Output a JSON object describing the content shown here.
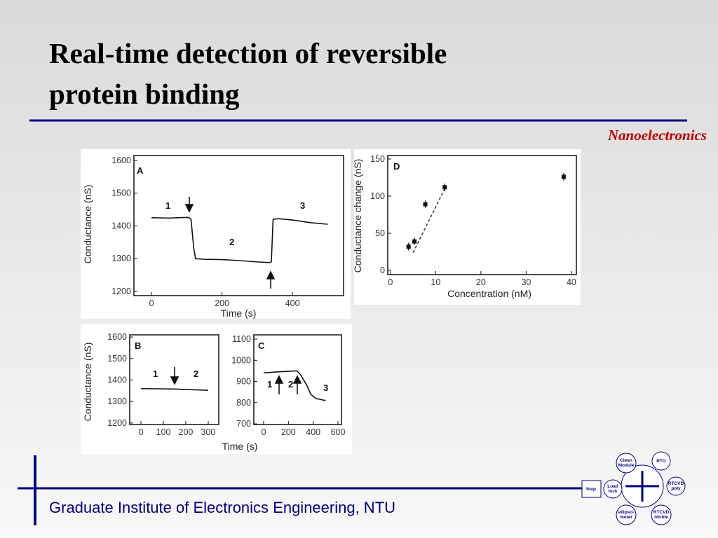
{
  "slide": {
    "title": [
      "Real-time detection of reversible",
      "protein binding"
    ],
    "subtitle": "Nanoelectronics",
    "footer": "Graduate Institute of Electronics Engineering, NTU",
    "logo": [
      "Clean",
      "Module",
      "RTO",
      "foup",
      "Load",
      "lock",
      "RTCVD",
      "poly",
      "ellipso-",
      "meter",
      "RTCVD",
      "nitride"
    ]
  },
  "chart_data": [
    {
      "type": "line",
      "x_label": "Time (s)",
      "y_label": "Conductance (nS)",
      "annotations": [
        "A",
        "1",
        "2",
        "3"
      ],
      "x": [
        0,
        50,
        105,
        112,
        120,
        125,
        150,
        200,
        250,
        300,
        335,
        340,
        345,
        360,
        400,
        450,
        500
      ],
      "values": [
        1425,
        1424,
        1426,
        1420,
        1330,
        1300,
        1298,
        1297,
        1294,
        1290,
        1288,
        1290,
        1420,
        1422,
        1418,
        1410,
        1405
      ],
      "color": "#111111",
      "xlim": [
        -50,
        545
      ],
      "xticks": [
        0,
        200,
        400
      ],
      "ylim": [
        1187,
        1615
      ],
      "yticks": [
        1200,
        1300,
        1400,
        1500,
        1600
      ]
    },
    {
      "type": "line",
      "y_label": "Conductance (nS)",
      "annotations": [
        "B",
        "1",
        "2"
      ],
      "x": [
        0,
        150,
        300
      ],
      "values": [
        1360,
        1358,
        1352
      ],
      "color": "#111111",
      "xlim": [
        -50,
        347
      ],
      "xticks": [
        0,
        100,
        200,
        300
      ],
      "ylim": [
        1193,
        1610
      ],
      "yticks": [
        1200,
        1300,
        1400,
        1500,
        1600
      ]
    },
    {
      "type": "line",
      "x_label": "Time (s)",
      "annotations": [
        "C",
        "1",
        "2",
        "3"
      ],
      "x": [
        0,
        100,
        200,
        270,
        300,
        350,
        380,
        420,
        500
      ],
      "values": [
        940,
        945,
        948,
        950,
        930,
        880,
        840,
        820,
        810
      ],
      "color": "#111111",
      "xlim": [
        -79,
        628
      ],
      "xticks": [
        0,
        200,
        400,
        600
      ],
      "ylim": [
        697,
        1120
      ],
      "yticks": [
        700,
        800,
        900,
        1000,
        1100
      ]
    },
    {
      "type": "scatter",
      "x_label": "Concentration (nM)",
      "y_label": "Conductance change (nS)",
      "annotations": [
        "D"
      ],
      "x": [
        4,
        5.3,
        7.7,
        12,
        38.3
      ],
      "values": [
        32,
        39,
        89,
        112,
        126
      ],
      "errors": [
        5,
        5,
        5,
        5,
        5
      ],
      "fit": {
        "x": [
          5,
          12
        ],
        "values": [
          24,
          110
        ]
      },
      "color": "#111111",
      "xlim": [
        -0.6,
        41.1
      ],
      "xticks": [
        0,
        10,
        20,
        30,
        40
      ],
      "ylim": [
        -5.7,
        154.7
      ],
      "yticks": [
        0,
        50,
        100,
        150
      ]
    }
  ]
}
